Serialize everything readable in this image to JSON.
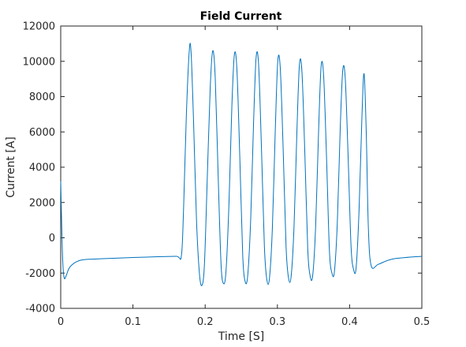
{
  "chart_data": {
    "type": "line",
    "title": "Field Current",
    "xlabel": "Time [S]",
    "ylabel": "Current [A]",
    "xlim": [
      0,
      0.5
    ],
    "ylim": [
      -4000,
      12000
    ],
    "xticks": [
      0,
      0.1,
      0.2,
      0.3,
      0.4,
      0.5
    ],
    "xtick_labels": [
      "0",
      "0.1",
      "0.2",
      "0.3",
      "0.4",
      "0.5"
    ],
    "yticks": [
      -4000,
      -2000,
      0,
      2000,
      4000,
      6000,
      8000,
      10000,
      12000
    ],
    "ytick_labels": [
      "-4000",
      "-2000",
      "0",
      "2000",
      "4000",
      "6000",
      "8000",
      "10000",
      "12000"
    ],
    "grid": false,
    "series": [
      {
        "color": "#0072bd",
        "x": [
          0,
          0.0015,
          0.003,
          0.005,
          0.008,
          0.012,
          0.02,
          0.03,
          0.05,
          0.08,
          0.1,
          0.13,
          0.16,
          0.167,
          0.17,
          0.174,
          0.178,
          0.1805,
          0.184,
          0.188,
          0.192,
          0.1955,
          0.199,
          0.203,
          0.207,
          0.2105,
          0.214,
          0.218,
          0.222,
          0.2255,
          0.229,
          0.233,
          0.237,
          0.2405,
          0.244,
          0.248,
          0.252,
          0.2555,
          0.259,
          0.263,
          0.267,
          0.2705,
          0.274,
          0.278,
          0.282,
          0.2855,
          0.289,
          0.293,
          0.297,
          0.3005,
          0.304,
          0.308,
          0.312,
          0.3155,
          0.319,
          0.323,
          0.327,
          0.3305,
          0.334,
          0.338,
          0.342,
          0.3455,
          0.349,
          0.353,
          0.357,
          0.3605,
          0.364,
          0.368,
          0.372,
          0.3755,
          0.379,
          0.383,
          0.387,
          0.3905,
          0.394,
          0.398,
          0.402,
          0.4055,
          0.409,
          0.413,
          0.417,
          0.42,
          0.423,
          0.426,
          0.43,
          0.44,
          0.46,
          0.5
        ],
        "y": [
          3200,
          500,
          -1500,
          -2300,
          -2100,
          -1700,
          -1400,
          -1250,
          -1200,
          -1150,
          -1120,
          -1080,
          -1050,
          -1040,
          1500,
          7000,
          10600,
          10500,
          6500,
          1000,
          -2000,
          -2700,
          -1500,
          3500,
          8500,
          10600,
          9000,
          3500,
          -1500,
          -2600,
          -1800,
          2000,
          7500,
          10400,
          9500,
          4500,
          -1000,
          -2500,
          -2100,
          1000,
          6500,
          10200,
          9800,
          5000,
          -500,
          -2400,
          -2300,
          500,
          6000,
          10000,
          9600,
          5000,
          -500,
          -2300,
          -2200,
          600,
          6000,
          9800,
          9400,
          4800,
          -600,
          -2200,
          -2100,
          700,
          6000,
          9700,
          9200,
          4600,
          -700,
          -2000,
          -1900,
          900,
          6200,
          9500,
          9000,
          4500,
          -500,
          -1800,
          -1700,
          1500,
          6800,
          9300,
          6000,
          500,
          -1600,
          -1500,
          -1200,
          -1050
        ]
      }
    ]
  }
}
